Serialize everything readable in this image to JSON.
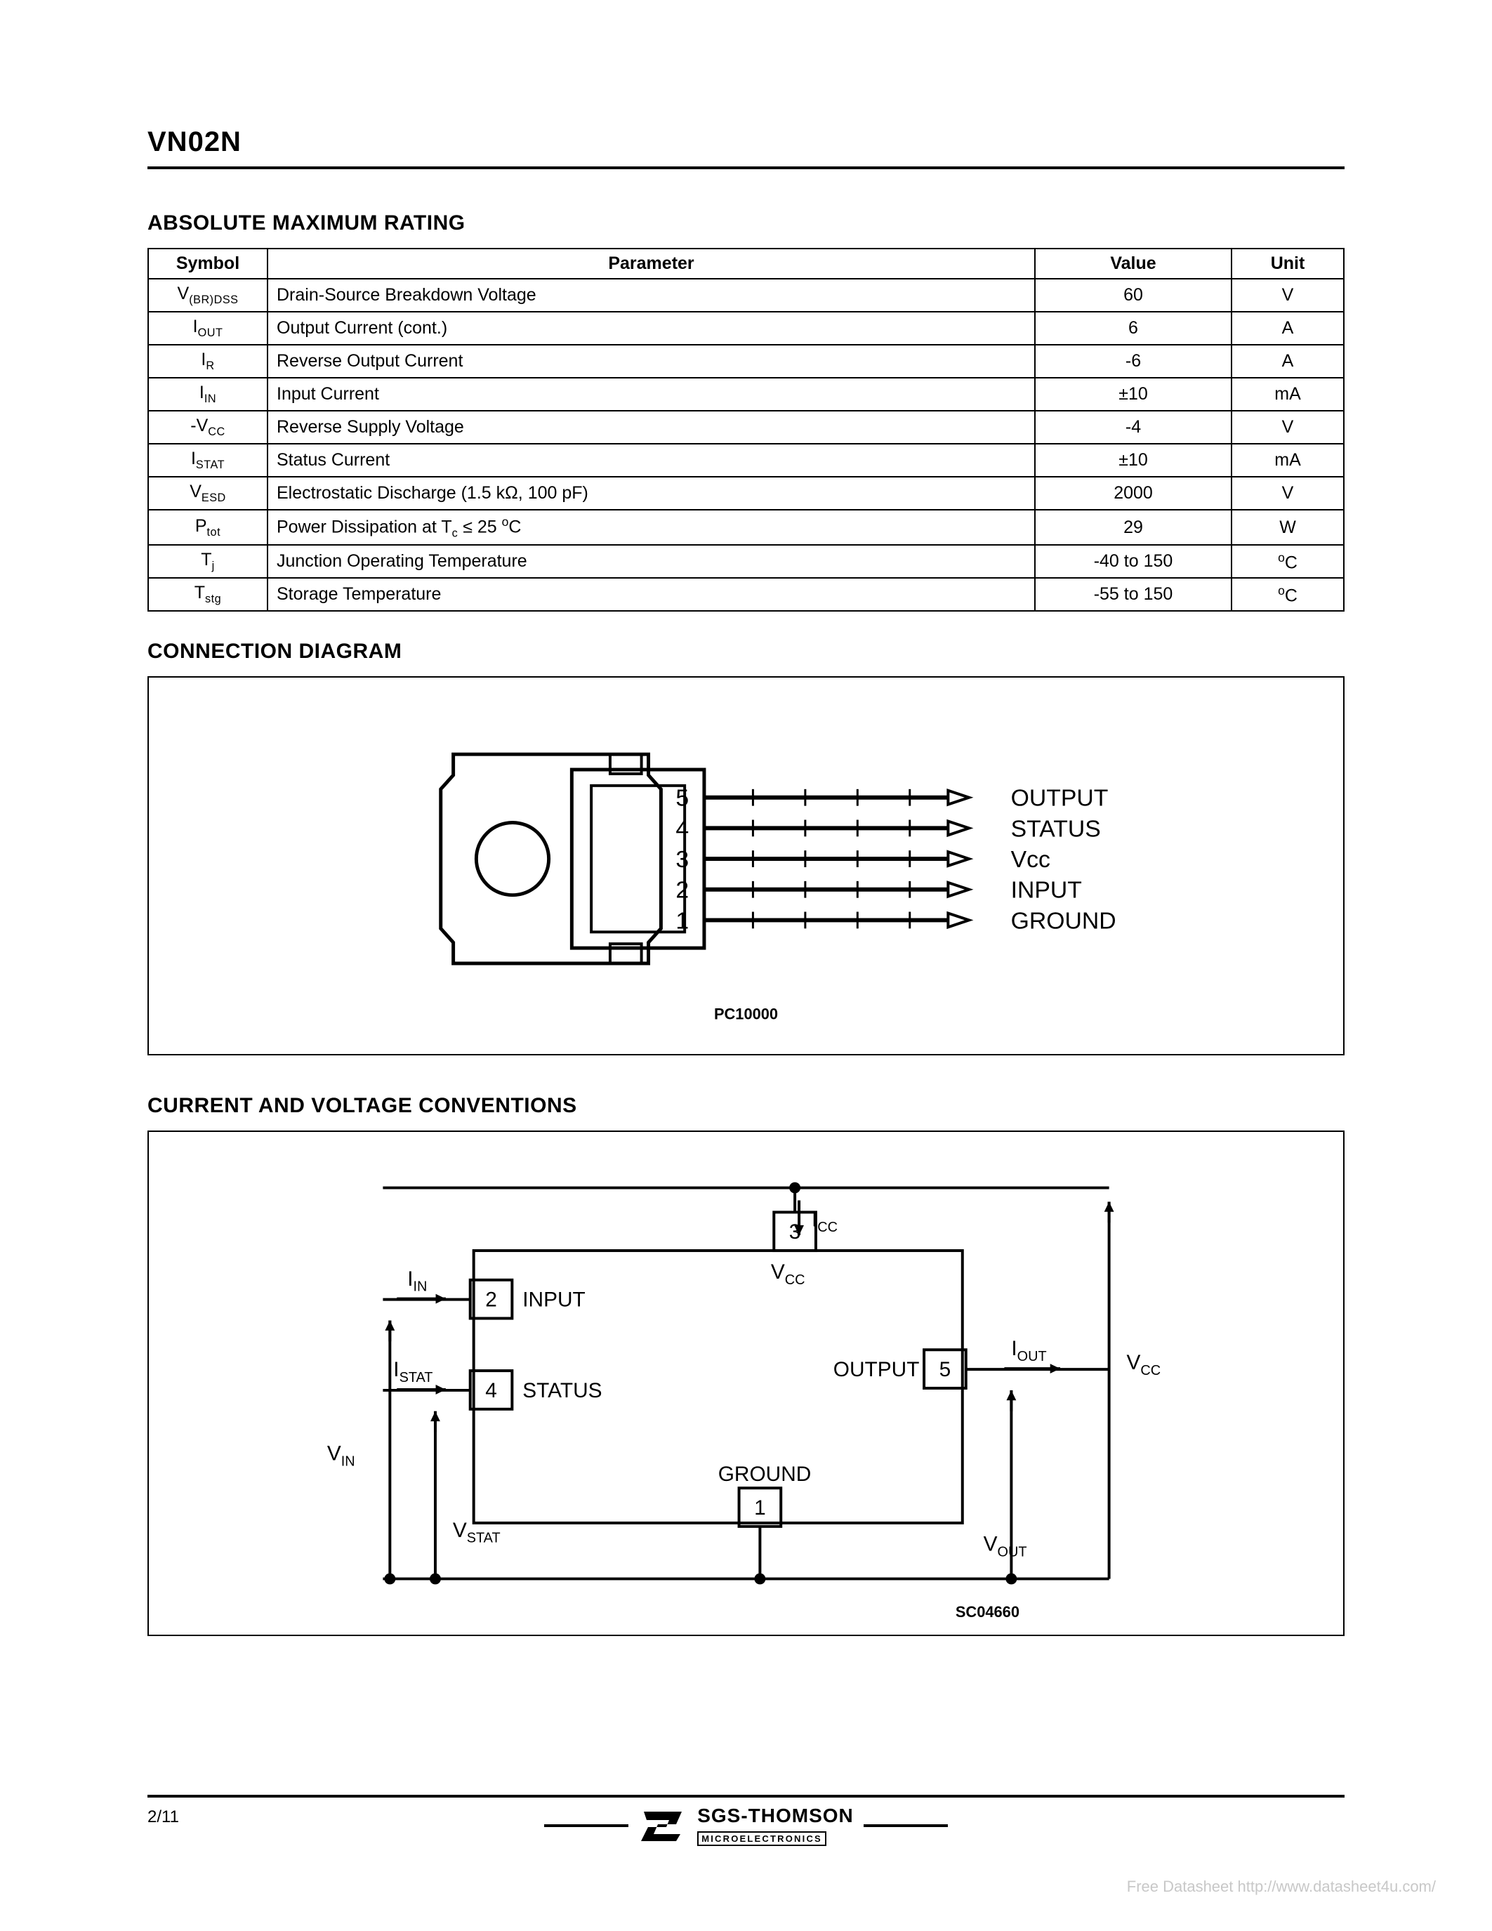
{
  "header": {
    "part_number": "VN02N"
  },
  "sections": {
    "ratings_title": "ABSOLUTE MAXIMUM RATING",
    "connection_title": "CONNECTION DIAGRAM",
    "conventions_title": "CURRENT AND VOLTAGE CONVENTIONS"
  },
  "ratings_table": {
    "columns": [
      "Symbol",
      "Parameter",
      "Value",
      "Unit"
    ],
    "rows": [
      {
        "symbol_main": "V",
        "symbol_sub": "(BR)DSS",
        "parameter": "Drain-Source Breakdown Voltage",
        "value": "60",
        "unit": "V"
      },
      {
        "symbol_main": "I",
        "symbol_sub": "OUT",
        "parameter": "Output Current (cont.)",
        "value": "6",
        "unit": "A"
      },
      {
        "symbol_main": "I",
        "symbol_sub": "R",
        "parameter": "Reverse Output Current",
        "value": "-6",
        "unit": "A"
      },
      {
        "symbol_main": "I",
        "symbol_sub": "IN",
        "parameter": "Input Current",
        "value": "±10",
        "unit": "mA"
      },
      {
        "symbol_main": "-V",
        "symbol_sub": "CC",
        "parameter": "Reverse Supply Voltage",
        "value": "-4",
        "unit": "V"
      },
      {
        "symbol_main": "I",
        "symbol_sub": "STAT",
        "parameter": "Status Current",
        "value": "±10",
        "unit": "mA"
      },
      {
        "symbol_main": "V",
        "symbol_sub": "ESD",
        "parameter": "Electrostatic Discharge (1.5 kΩ, 100 pF)",
        "value": "2000",
        "unit": "V"
      },
      {
        "symbol_main": "P",
        "symbol_sub": "tot",
        "parameter": "Power Dissipation at Tc ≤ 25 °C",
        "value": "29",
        "unit": "W",
        "param_has_sub": true
      },
      {
        "symbol_main": "T",
        "symbol_sub": "j",
        "parameter": "Junction Operating Temperature",
        "value": "-40 to 150",
        "unit": "°C",
        "unit_sup": true
      },
      {
        "symbol_main": "T",
        "symbol_sub": "stg",
        "parameter": "Storage Temperature",
        "value": "-55 to 150",
        "unit": "°C",
        "unit_sup": true
      }
    ]
  },
  "connection_diagram": {
    "type": "package-pinout",
    "code": "PC10000",
    "pins": [
      {
        "num": "5",
        "label": "OUTPUT"
      },
      {
        "num": "4",
        "label": "STATUS"
      },
      {
        "num": "3",
        "label": "Vcc"
      },
      {
        "num": "2",
        "label": "INPUT"
      },
      {
        "num": "1",
        "label": "GROUND"
      }
    ],
    "style": {
      "stroke": "#000000",
      "stroke_width": 5,
      "font_size_pins": 34,
      "font_size_labels": 34,
      "font_size_code": 22,
      "background": "#ffffff"
    }
  },
  "conventions_diagram": {
    "type": "schematic-block",
    "code": "SC04660",
    "nodes": [
      {
        "id": "2",
        "label": "INPUT"
      },
      {
        "id": "4",
        "label": "STATUS"
      },
      {
        "id": "3",
        "label": "",
        "label2": "VCC"
      },
      {
        "id": "5",
        "label": "OUTPUT"
      },
      {
        "id": "1",
        "label": "GROUND"
      }
    ],
    "currents": [
      "IIN",
      "ISTAT",
      "ICC",
      "IOUT"
    ],
    "voltages": [
      "VIN",
      "VSTAT",
      "VCC",
      "VOUT"
    ],
    "style": {
      "stroke": "#000000",
      "stroke_width": 4,
      "font_size": 30,
      "font_size_sub": 20,
      "font_size_code": 22,
      "background": "#ffffff"
    }
  },
  "footer": {
    "page": "2/11",
    "brand_top": "SGS-THOMSON",
    "brand_bottom": "MICROELECTRONICS"
  },
  "watermark": "Free Datasheet http://www.datasheet4u.com/"
}
